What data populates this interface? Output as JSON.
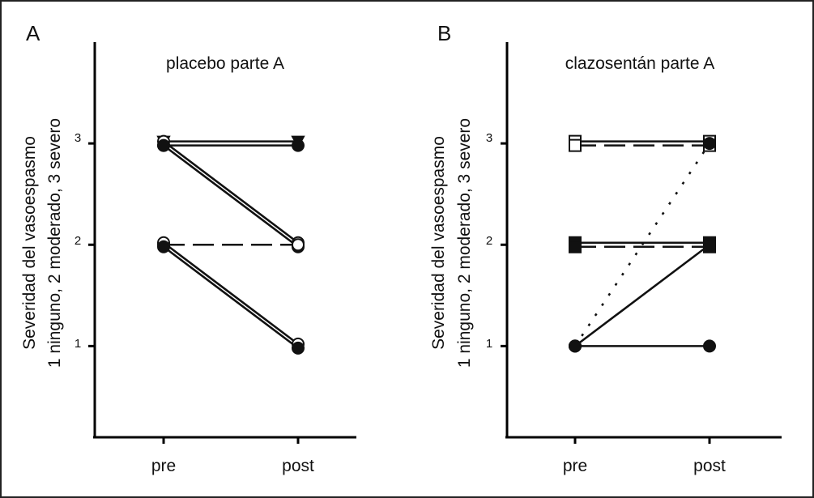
{
  "chart_data": [
    {
      "panel_label": "A",
      "type": "line",
      "title": "placebo parte A",
      "ylabel_lines": [
        "Severidad del vasoespasmo",
        "1 ninguno, 2 moderado, 3 severo"
      ],
      "categories": [
        "pre",
        "post"
      ],
      "yticks": [
        "1",
        "2",
        "3"
      ],
      "ylim": [
        0.1,
        4.0
      ],
      "grid": false,
      "series": [
        {
          "values": [
            3,
            3
          ],
          "marker": "triangle-down",
          "filled": true,
          "style": "solid"
        },
        {
          "values": [
            3,
            3
          ],
          "marker": "circle",
          "filled": true,
          "style": "solid"
        },
        {
          "values": [
            3,
            2
          ],
          "marker": "circle",
          "filled": false,
          "style": "solid"
        },
        {
          "values": [
            3,
            2
          ],
          "marker": "circle",
          "filled": true,
          "style": "solid"
        },
        {
          "values": [
            2,
            2
          ],
          "marker": "circle",
          "filled": false,
          "style": "dashed"
        },
        {
          "values": [
            2,
            1
          ],
          "marker": "circle",
          "filled": false,
          "style": "solid"
        },
        {
          "values": [
            2,
            1
          ],
          "marker": "circle",
          "filled": true,
          "style": "solid"
        }
      ]
    },
    {
      "panel_label": "B",
      "type": "line",
      "title": "clazosentán parte A",
      "ylabel_lines": [
        "Severidad del vasoespasmo",
        "1 ninguno, 2 moderado, 3 severo"
      ],
      "categories": [
        "pre",
        "post"
      ],
      "yticks": [
        "1",
        "2",
        "3"
      ],
      "ylim": [
        0.1,
        4.0
      ],
      "grid": false,
      "series": [
        {
          "values": [
            3,
            3
          ],
          "marker": "square",
          "filled": false,
          "style": "solid"
        },
        {
          "values": [
            3,
            3
          ],
          "marker": "square",
          "filled": false,
          "style": "dashed"
        },
        {
          "values": [
            2,
            2
          ],
          "marker": "square",
          "filled": true,
          "style": "solid"
        },
        {
          "values": [
            2,
            2
          ],
          "marker": "square",
          "filled": true,
          "style": "dashed"
        },
        {
          "values": [
            1,
            3
          ],
          "marker": "circle",
          "filled": true,
          "style": "dotted"
        },
        {
          "values": [
            1,
            2
          ],
          "marker": "circle",
          "filled": true,
          "style": "solid"
        },
        {
          "values": [
            1,
            1
          ],
          "marker": "circle",
          "filled": true,
          "style": "solid"
        }
      ]
    }
  ]
}
